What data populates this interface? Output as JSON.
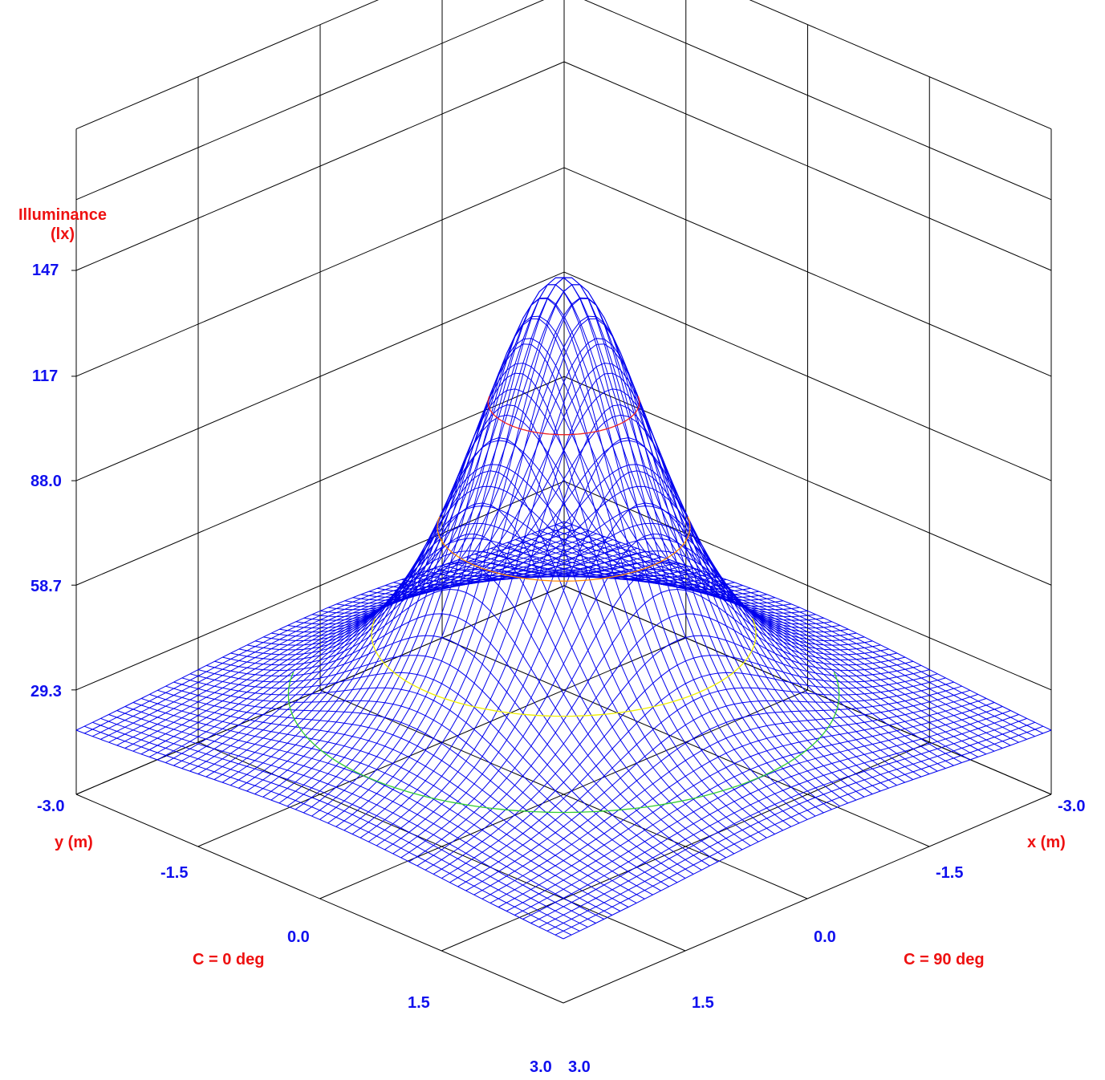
{
  "chart_data": {
    "type": "surface3d",
    "title": "",
    "zlabel": "Illuminance\n(lx)",
    "xlabel": "x (m)",
    "ylabel": "y (m)",
    "x_plane_label": "C = 90 deg",
    "y_plane_label": "C = 0 deg",
    "z_ticks": [
      "147",
      "117",
      "88.0",
      "58.7",
      "29.3"
    ],
    "z_tick_values": [
      147,
      117.3,
      88.0,
      58.7,
      29.3
    ],
    "x_ticks": [
      "-3.0",
      "-1.5",
      "0.0",
      "1.5",
      "3.0"
    ],
    "y_ticks": [
      "-3.0",
      "-1.5",
      "0.0",
      "1.5",
      "3.0"
    ],
    "x_range": [
      -3.0,
      3.0
    ],
    "y_range": [
      -3.0,
      3.0
    ],
    "z_range": [
      0,
      147
    ],
    "surface": {
      "description": "rotationally symmetric illuminance distribution from a single luminaire",
      "peak_value": 145,
      "peak_at": [
        0.0,
        0.0
      ],
      "corner_value": 18,
      "edge_midpoint_value": 30,
      "grid_resolution": 61,
      "mesh_color": "#0000ee"
    },
    "isolines": [
      {
        "value": 110,
        "color": "#ee2222"
      },
      {
        "value": 75,
        "color": "#ff8800"
      },
      {
        "value": 45,
        "color": "#eeee00"
      },
      {
        "value": 28,
        "color": "#33cc33"
      }
    ],
    "grid": true,
    "colors": {
      "axis_text": "#1010ee",
      "axis_title": "#ee1111",
      "frame": "#000000"
    }
  }
}
